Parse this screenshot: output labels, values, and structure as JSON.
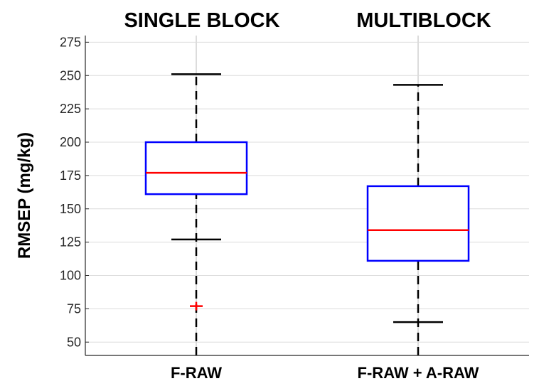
{
  "chart_data": {
    "type": "boxplot",
    "ylabel": "RMSEP (mg/kg)",
    "ylim": [
      40,
      280
    ],
    "yticks": [
      50,
      75,
      100,
      125,
      150,
      175,
      200,
      225,
      250,
      275
    ],
    "grid": true,
    "categories": [
      {
        "title": "SINGLE BLOCK",
        "label": "F-RAW",
        "whisker_low": 127,
        "q1": 161,
        "median": 177,
        "q3": 200,
        "whisker_high": 251,
        "outliers": [
          77
        ]
      },
      {
        "title": "MULTIBLOCK",
        "label": "F-RAW + A-RAW",
        "whisker_low": 65,
        "q1": 111,
        "median": 134,
        "q3": 167,
        "whisker_high": 243,
        "outliers": []
      }
    ],
    "colors": {
      "box": "#0000ff",
      "median": "#ff0000",
      "outlier": "#ff0000",
      "whisker": "#000000",
      "grid": "#dcdcdc"
    }
  }
}
